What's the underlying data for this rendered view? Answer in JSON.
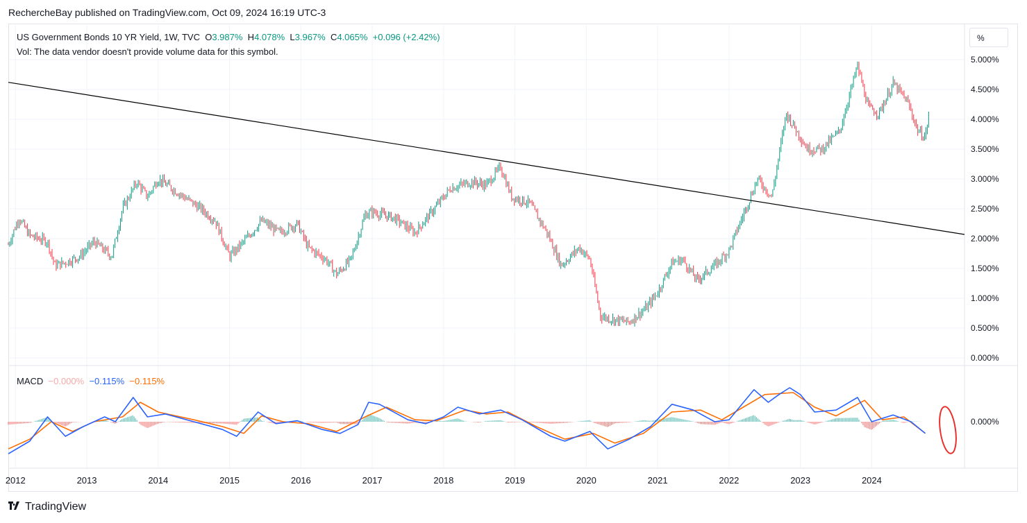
{
  "header": {
    "publisher": "RechercheBay published on TradingView.com, Oct 09, 2024 16:19 UTC-3"
  },
  "legend": {
    "symbol": "US Government Bonds 10 YR Yield, 1W, TVC",
    "o_label": "O",
    "o_value": "3.987%",
    "h_label": "H",
    "h_value": "4.078%",
    "l_label": "L",
    "l_value": "3.967%",
    "c_label": "C",
    "c_value": "4.065%",
    "change": "+0.096 (+2.42%)",
    "vol_note": "Vol: The data vendor doesn't provide volume data for this symbol."
  },
  "macd_legend": {
    "name": "MACD",
    "hist": "−0.000%",
    "macd": "−0.115%",
    "signal": "−0.115%"
  },
  "price_scale_unit": "%",
  "brand": {
    "name": "TradingView"
  },
  "colors": {
    "up": "#089981",
    "down": "#f23645",
    "macd": "#2962ff",
    "signal": "#ff6d00",
    "trendline": "#000000",
    "annotation": "#e8312f"
  },
  "chart_data": [
    {
      "type": "candlestick",
      "title": "US Government Bonds 10 YR Yield, 1W, TVC",
      "x_ticks": [
        "2012",
        "2013",
        "2014",
        "2015",
        "2016",
        "2017",
        "2018",
        "2019",
        "2020",
        "2021",
        "2022",
        "2023",
        "2024"
      ],
      "y_ticks": [
        "0.000%",
        "0.500%",
        "1.000%",
        "1.500%",
        "2.000%",
        "2.500%",
        "3.000%",
        "3.500%",
        "4.000%",
        "4.500%",
        "5.000%"
      ],
      "ylim": [
        0,
        5.25
      ],
      "xlim": [
        2011.9,
        2025.3
      ],
      "grid": true,
      "approx_path": [
        [
          2011.9,
          1.9
        ],
        [
          2012.05,
          2.35
        ],
        [
          2012.2,
          2.05
        ],
        [
          2012.45,
          1.95
        ],
        [
          2012.55,
          1.55
        ],
        [
          2012.7,
          1.6
        ],
        [
          2012.9,
          1.7
        ],
        [
          2013.1,
          1.95
        ],
        [
          2013.35,
          1.7
        ],
        [
          2013.5,
          2.5
        ],
        [
          2013.7,
          2.95
        ],
        [
          2013.85,
          2.7
        ],
        [
          2014.0,
          3.0
        ],
        [
          2014.3,
          2.75
        ],
        [
          2014.6,
          2.5
        ],
        [
          2014.8,
          2.3
        ],
        [
          2015.0,
          1.7
        ],
        [
          2015.2,
          1.95
        ],
        [
          2015.45,
          2.3
        ],
        [
          2015.7,
          2.1
        ],
        [
          2015.95,
          2.25
        ],
        [
          2016.1,
          1.85
        ],
        [
          2016.35,
          1.65
        ],
        [
          2016.5,
          1.4
        ],
        [
          2016.7,
          1.65
        ],
        [
          2016.9,
          2.4
        ],
        [
          2017.0,
          2.45
        ],
        [
          2017.3,
          2.35
        ],
        [
          2017.6,
          2.1
        ],
        [
          2017.8,
          2.4
        ],
        [
          2018.1,
          2.85
        ],
        [
          2018.4,
          2.95
        ],
        [
          2018.6,
          2.9
        ],
        [
          2018.8,
          3.2
        ],
        [
          2018.95,
          2.7
        ],
        [
          2019.2,
          2.6
        ],
        [
          2019.45,
          2.1
        ],
        [
          2019.65,
          1.55
        ],
        [
          2019.9,
          1.85
        ],
        [
          2020.05,
          1.65
        ],
        [
          2020.2,
          0.7
        ],
        [
          2020.35,
          0.65
        ],
        [
          2020.6,
          0.6
        ],
        [
          2020.85,
          0.85
        ],
        [
          2021.0,
          1.1
        ],
        [
          2021.2,
          1.6
        ],
        [
          2021.35,
          1.65
        ],
        [
          2021.55,
          1.3
        ],
        [
          2021.8,
          1.55
        ],
        [
          2022.0,
          1.8
        ],
        [
          2022.2,
          2.4
        ],
        [
          2022.4,
          3.0
        ],
        [
          2022.6,
          2.7
        ],
        [
          2022.8,
          4.1
        ],
        [
          2022.95,
          3.8
        ],
        [
          2023.1,
          3.5
        ],
        [
          2023.3,
          3.5
        ],
        [
          2023.55,
          3.8
        ],
        [
          2023.8,
          4.9
        ],
        [
          2023.95,
          4.2
        ],
        [
          2024.1,
          4.1
        ],
        [
          2024.3,
          4.6
        ],
        [
          2024.5,
          4.3
        ],
        [
          2024.65,
          3.8
        ],
        [
          2024.75,
          3.7
        ],
        [
          2024.8,
          4.07
        ]
      ],
      "trendline": {
        "from": [
          2011.9,
          4.62
        ],
        "to": [
          2025.3,
          2.07
        ]
      },
      "last": {
        "open": 3.987,
        "high": 4.078,
        "low": 3.967,
        "close": 4.065
      }
    },
    {
      "type": "line",
      "title": "MACD",
      "y_ticks": [
        "0.000%"
      ],
      "series": [
        {
          "name": "MACD",
          "values": [
            [
              2011.9,
              -0.33
            ],
            [
              2012.2,
              -0.2
            ],
            [
              2012.45,
              0.05
            ],
            [
              2012.7,
              -0.15
            ],
            [
              2012.95,
              -0.05
            ],
            [
              2013.25,
              0.05
            ],
            [
              2013.4,
              0.0
            ],
            [
              2013.65,
              0.25
            ],
            [
              2013.85,
              0.05
            ],
            [
              2014.1,
              0.08
            ],
            [
              2014.5,
              0.0
            ],
            [
              2014.9,
              -0.08
            ],
            [
              2015.1,
              -0.15
            ],
            [
              2015.4,
              0.1
            ],
            [
              2015.65,
              -0.02
            ],
            [
              2015.95,
              0.01
            ],
            [
              2016.3,
              -0.08
            ],
            [
              2016.55,
              -0.12
            ],
            [
              2016.8,
              -0.03
            ],
            [
              2016.95,
              0.2
            ],
            [
              2017.1,
              0.18
            ],
            [
              2017.5,
              0.02
            ],
            [
              2017.75,
              -0.02
            ],
            [
              2018.0,
              0.05
            ],
            [
              2018.2,
              0.15
            ],
            [
              2018.5,
              0.08
            ],
            [
              2018.8,
              0.12
            ],
            [
              2019.1,
              0.02
            ],
            [
              2019.5,
              -0.15
            ],
            [
              2019.7,
              -0.2
            ],
            [
              2020.05,
              -0.1
            ],
            [
              2020.3,
              -0.28
            ],
            [
              2020.6,
              -0.18
            ],
            [
              2020.9,
              -0.05
            ],
            [
              2021.2,
              0.18
            ],
            [
              2021.5,
              0.12
            ],
            [
              2021.8,
              0.0
            ],
            [
              2022.0,
              0.02
            ],
            [
              2022.35,
              0.33
            ],
            [
              2022.55,
              0.2
            ],
            [
              2022.7,
              0.28
            ],
            [
              2022.85,
              0.35
            ],
            [
              2023.0,
              0.28
            ],
            [
              2023.2,
              0.1
            ],
            [
              2023.5,
              0.12
            ],
            [
              2023.8,
              0.25
            ],
            [
              2024.0,
              0.0
            ],
            [
              2024.3,
              0.07
            ],
            [
              2024.55,
              0.0
            ],
            [
              2024.75,
              -0.12
            ]
          ]
        },
        {
          "name": "Signal",
          "values": [
            [
              2011.9,
              -0.28
            ],
            [
              2012.2,
              -0.18
            ],
            [
              2012.5,
              0.0
            ],
            [
              2012.8,
              -0.1
            ],
            [
              2013.1,
              0.0
            ],
            [
              2013.5,
              0.05
            ],
            [
              2013.75,
              0.2
            ],
            [
              2014.0,
              0.1
            ],
            [
              2014.5,
              0.02
            ],
            [
              2014.9,
              -0.05
            ],
            [
              2015.2,
              -0.12
            ],
            [
              2015.45,
              0.06
            ],
            [
              2015.75,
              0.0
            ],
            [
              2016.1,
              -0.02
            ],
            [
              2016.5,
              -0.1
            ],
            [
              2016.9,
              0.05
            ],
            [
              2017.2,
              0.15
            ],
            [
              2017.6,
              0.02
            ],
            [
              2017.9,
              0.01
            ],
            [
              2018.3,
              0.12
            ],
            [
              2018.6,
              0.08
            ],
            [
              2018.9,
              0.1
            ],
            [
              2019.3,
              -0.05
            ],
            [
              2019.7,
              -0.18
            ],
            [
              2020.1,
              -0.12
            ],
            [
              2020.4,
              -0.22
            ],
            [
              2020.8,
              -0.12
            ],
            [
              2021.2,
              0.1
            ],
            [
              2021.6,
              0.12
            ],
            [
              2021.9,
              0.02
            ],
            [
              2022.2,
              0.15
            ],
            [
              2022.5,
              0.28
            ],
            [
              2022.9,
              0.3
            ],
            [
              2023.2,
              0.15
            ],
            [
              2023.5,
              0.06
            ],
            [
              2023.9,
              0.22
            ],
            [
              2024.15,
              0.02
            ],
            [
              2024.45,
              0.05
            ],
            [
              2024.75,
              -0.12
            ]
          ]
        }
      ]
    }
  ]
}
